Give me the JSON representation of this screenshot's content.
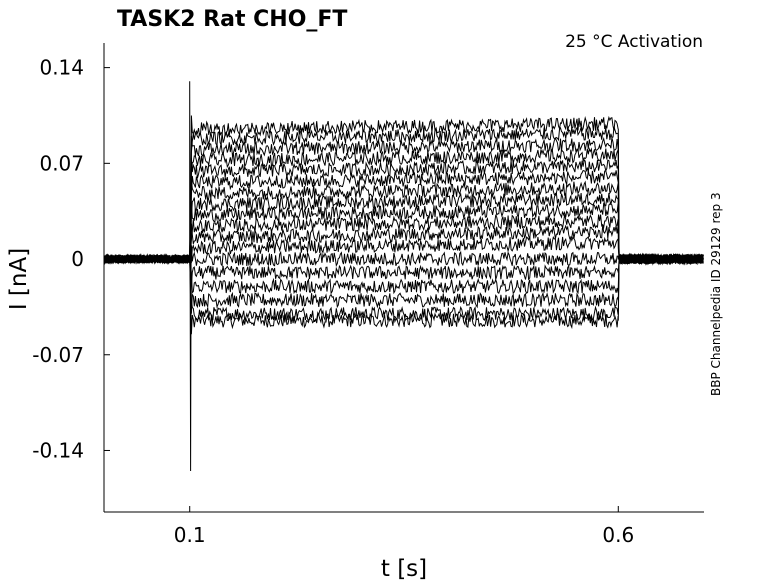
{
  "chart_data": {
    "type": "line",
    "title": "TASK2  Rat  CHO_FT",
    "subtitle": "25 °C  Activation",
    "side_label": "BBP Channelpedia ID 29129 rep 3",
    "xlabel": "t [s]",
    "ylabel": "I [nA]",
    "xlim": [
      0.0,
      0.7
    ],
    "ylim": [
      -0.185,
      0.158
    ],
    "xticks": [
      {
        "value": 0.1,
        "label": "0.1"
      },
      {
        "value": 0.6,
        "label": "0.6"
      }
    ],
    "yticks": [
      {
        "value": 0.14,
        "label": "0.14"
      },
      {
        "value": 0.07,
        "label": "0.07"
      },
      {
        "value": 0,
        "label": "0"
      },
      {
        "value": -0.07,
        "label": "-0.07"
      },
      {
        "value": -0.14,
        "label": "-0.14"
      }
    ],
    "grid": false,
    "pulse": {
      "start": 0.1,
      "end": 0.6
    },
    "transient": {
      "peak": 0.13,
      "trough": -0.155
    },
    "series": [
      {
        "steady": -0.045
      },
      {
        "steady": -0.04
      },
      {
        "steady": -0.03
      },
      {
        "steady": -0.02
      },
      {
        "steady": -0.01
      },
      {
        "steady": 0.0
      },
      {
        "steady": 0.008
      },
      {
        "steady": 0.016
      },
      {
        "steady": 0.024
      },
      {
        "steady": 0.032
      },
      {
        "steady": 0.04
      },
      {
        "steady": 0.048
      },
      {
        "steady": 0.056
      },
      {
        "steady": 0.064
      },
      {
        "steady": 0.072
      },
      {
        "steady": 0.08
      },
      {
        "steady": 0.088
      },
      {
        "steady": 0.095
      }
    ]
  }
}
